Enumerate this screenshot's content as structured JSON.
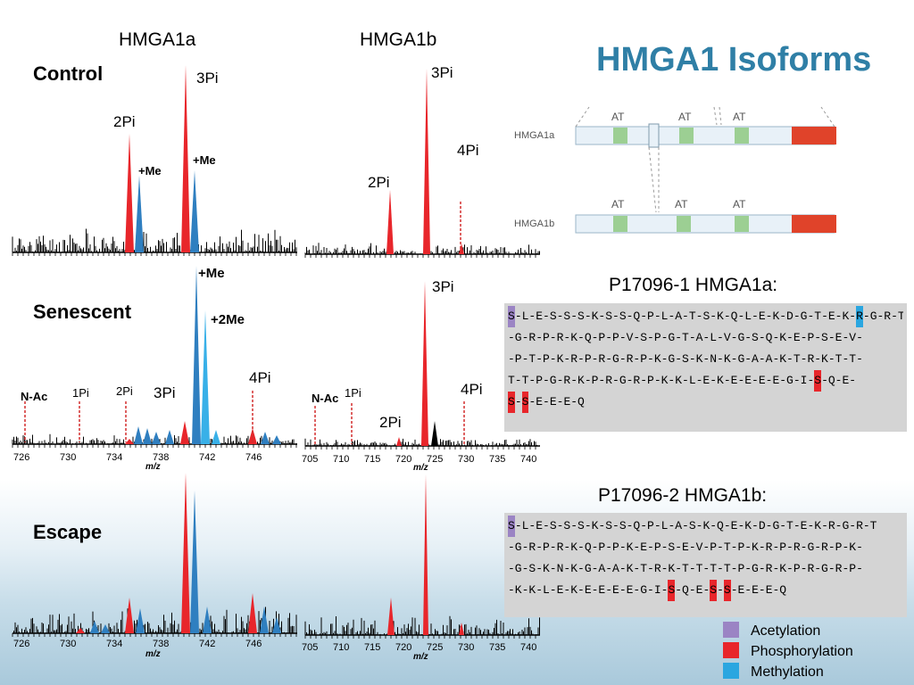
{
  "title": "HMGA1 Isoforms",
  "columns": [
    "HMGA1a",
    "HMGA1b"
  ],
  "rows": [
    "Control",
    "Senescent",
    "Escape"
  ],
  "peak_labels": {
    "control_a": [
      "2Pi",
      "+Me",
      "3Pi",
      "+Me"
    ],
    "control_b": [
      "3Pi",
      "4Pi",
      "2Pi"
    ],
    "senescent_a": [
      "+Me",
      "+2Me",
      "4Pi",
      "N-Ac",
      "1Pi",
      "2Pi",
      "3Pi"
    ],
    "senescent_b": [
      "3Pi",
      "N-Ac",
      "1Pi",
      "4Pi",
      "2Pi"
    ]
  },
  "axis_a_ticks": [
    "726",
    "730",
    "734",
    "738",
    "742",
    "746"
  ],
  "axis_b_ticks": [
    "705",
    "710",
    "715",
    "720",
    "725",
    "730",
    "735",
    "740"
  ],
  "axis_unit": "m/z",
  "domain_diagram": {
    "isoform_a": "HMGA1a",
    "isoform_b": "HMGA1b",
    "motif": "AT"
  },
  "seq_a_header": "P17096-1 HMGA1a:",
  "seq_b_header": "P17096-2 HMGA1b:",
  "seq_a_lines": [
    [
      [
        "S",
        "ac"
      ],
      [
        "-L-E-S-S-S-K-S-S-Q-P-L-A-T-S-K-Q-L-E-K-D-G-T-E-K-",
        ""
      ],
      [
        "R",
        "me"
      ],
      [
        "-G-R-T",
        ""
      ]
    ],
    [
      [
        "-G-R-P-R-K-Q-P-P-V-S-P-G-T-A-L-V-G-S-Q-K-E-P-S-E-V-",
        ""
      ]
    ],
    [
      [
        "-P-T-P-K-R-P-R-G-R-P-K-G-S-K-N-K-G-A-A-K-T-R-K-T-T-",
        ""
      ]
    ],
    [
      [
        "T-T-P-G-R-K-P-R-G-R-P-K-K-L-E-K-E-E-E-E-G-I-",
        ""
      ],
      [
        "S",
        "ph"
      ],
      [
        "-Q-E-",
        ""
      ]
    ],
    [
      [
        "S",
        "ph"
      ],
      [
        "-",
        ""
      ],
      [
        "S",
        "ph"
      ],
      [
        "-E-E-E-Q",
        ""
      ]
    ]
  ],
  "seq_b_lines": [
    [
      [
        "S",
        "ac"
      ],
      [
        "-L-E-S-S-S-K-S-S-Q-P-L-A-S-K-Q-E-K-D-G-T-E-K-R-G-R-T",
        ""
      ]
    ],
    [
      [
        "-G-R-P-R-K-Q-P-P-K-E-P-S-E-V-P-T-P-K-R-P-R-G-R-P-K-",
        ""
      ]
    ],
    [
      [
        "-G-S-K-N-K-G-A-A-K-T-R-K-T-T-T-T-P-G-R-K-P-R-G-R-P-",
        ""
      ]
    ],
    [
      [
        "-K-K-L-E-K-E-E-E-E-G-I-",
        ""
      ],
      [
        "S",
        "ph"
      ],
      [
        "-Q-E-",
        ""
      ],
      [
        "S",
        "ph"
      ],
      [
        "-",
        ""
      ],
      [
        "S",
        "ph"
      ],
      [
        "-E-E-E-Q",
        ""
      ]
    ]
  ],
  "legend": [
    {
      "label": "Acetylation",
      "color": "#9b84c4"
    },
    {
      "label": "Phosphorylation",
      "color": "#e8262b"
    },
    {
      "label": "Methylation",
      "color": "#2aa6e0"
    }
  ]
}
